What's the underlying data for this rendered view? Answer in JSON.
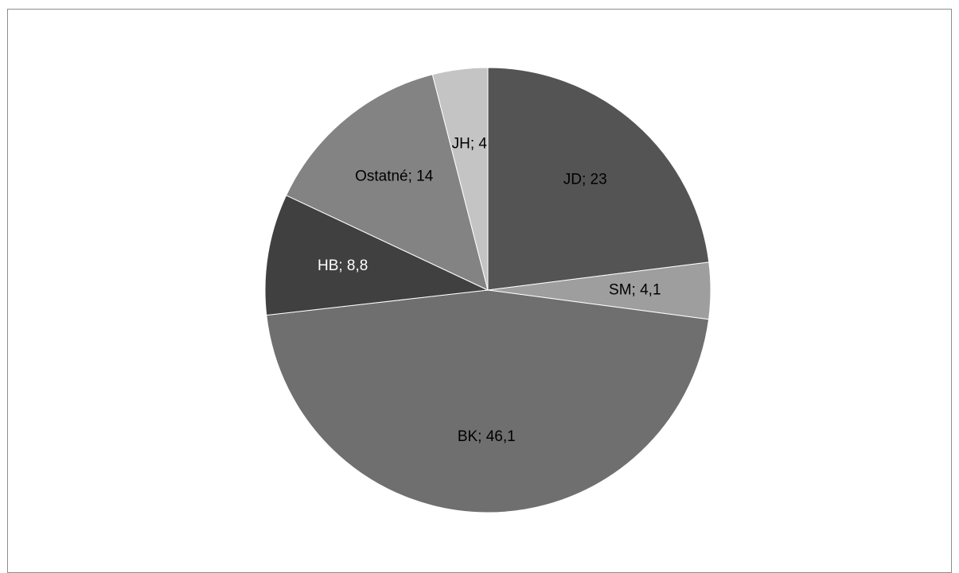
{
  "chart_data": {
    "type": "pie",
    "title": "",
    "start_angle_deg": 0,
    "direction": "clockwise",
    "slices": [
      {
        "label": "JD",
        "value": 23,
        "display": "JD; 23",
        "color": "#545454",
        "text_color": "#000000"
      },
      {
        "label": "SM",
        "value": 4.1,
        "display": "SM; 4,1",
        "color": "#9e9e9e",
        "text_color": "#000000"
      },
      {
        "label": "BK",
        "value": 46.1,
        "display": "BK; 46,1",
        "color": "#6f6f6f",
        "text_color": "#000000"
      },
      {
        "label": "HB",
        "value": 8.8,
        "display": "HB; 8,8",
        "color": "#404040",
        "text_color": "#ffffff"
      },
      {
        "label": "Ostatné",
        "value": 14,
        "display": "Ostatné; 14",
        "color": "#838383",
        "text_color": "#000000"
      },
      {
        "label": "JH",
        "value": 4,
        "display": "JH; 4",
        "color": "#c4c4c4",
        "text_color": "#000000"
      }
    ]
  }
}
